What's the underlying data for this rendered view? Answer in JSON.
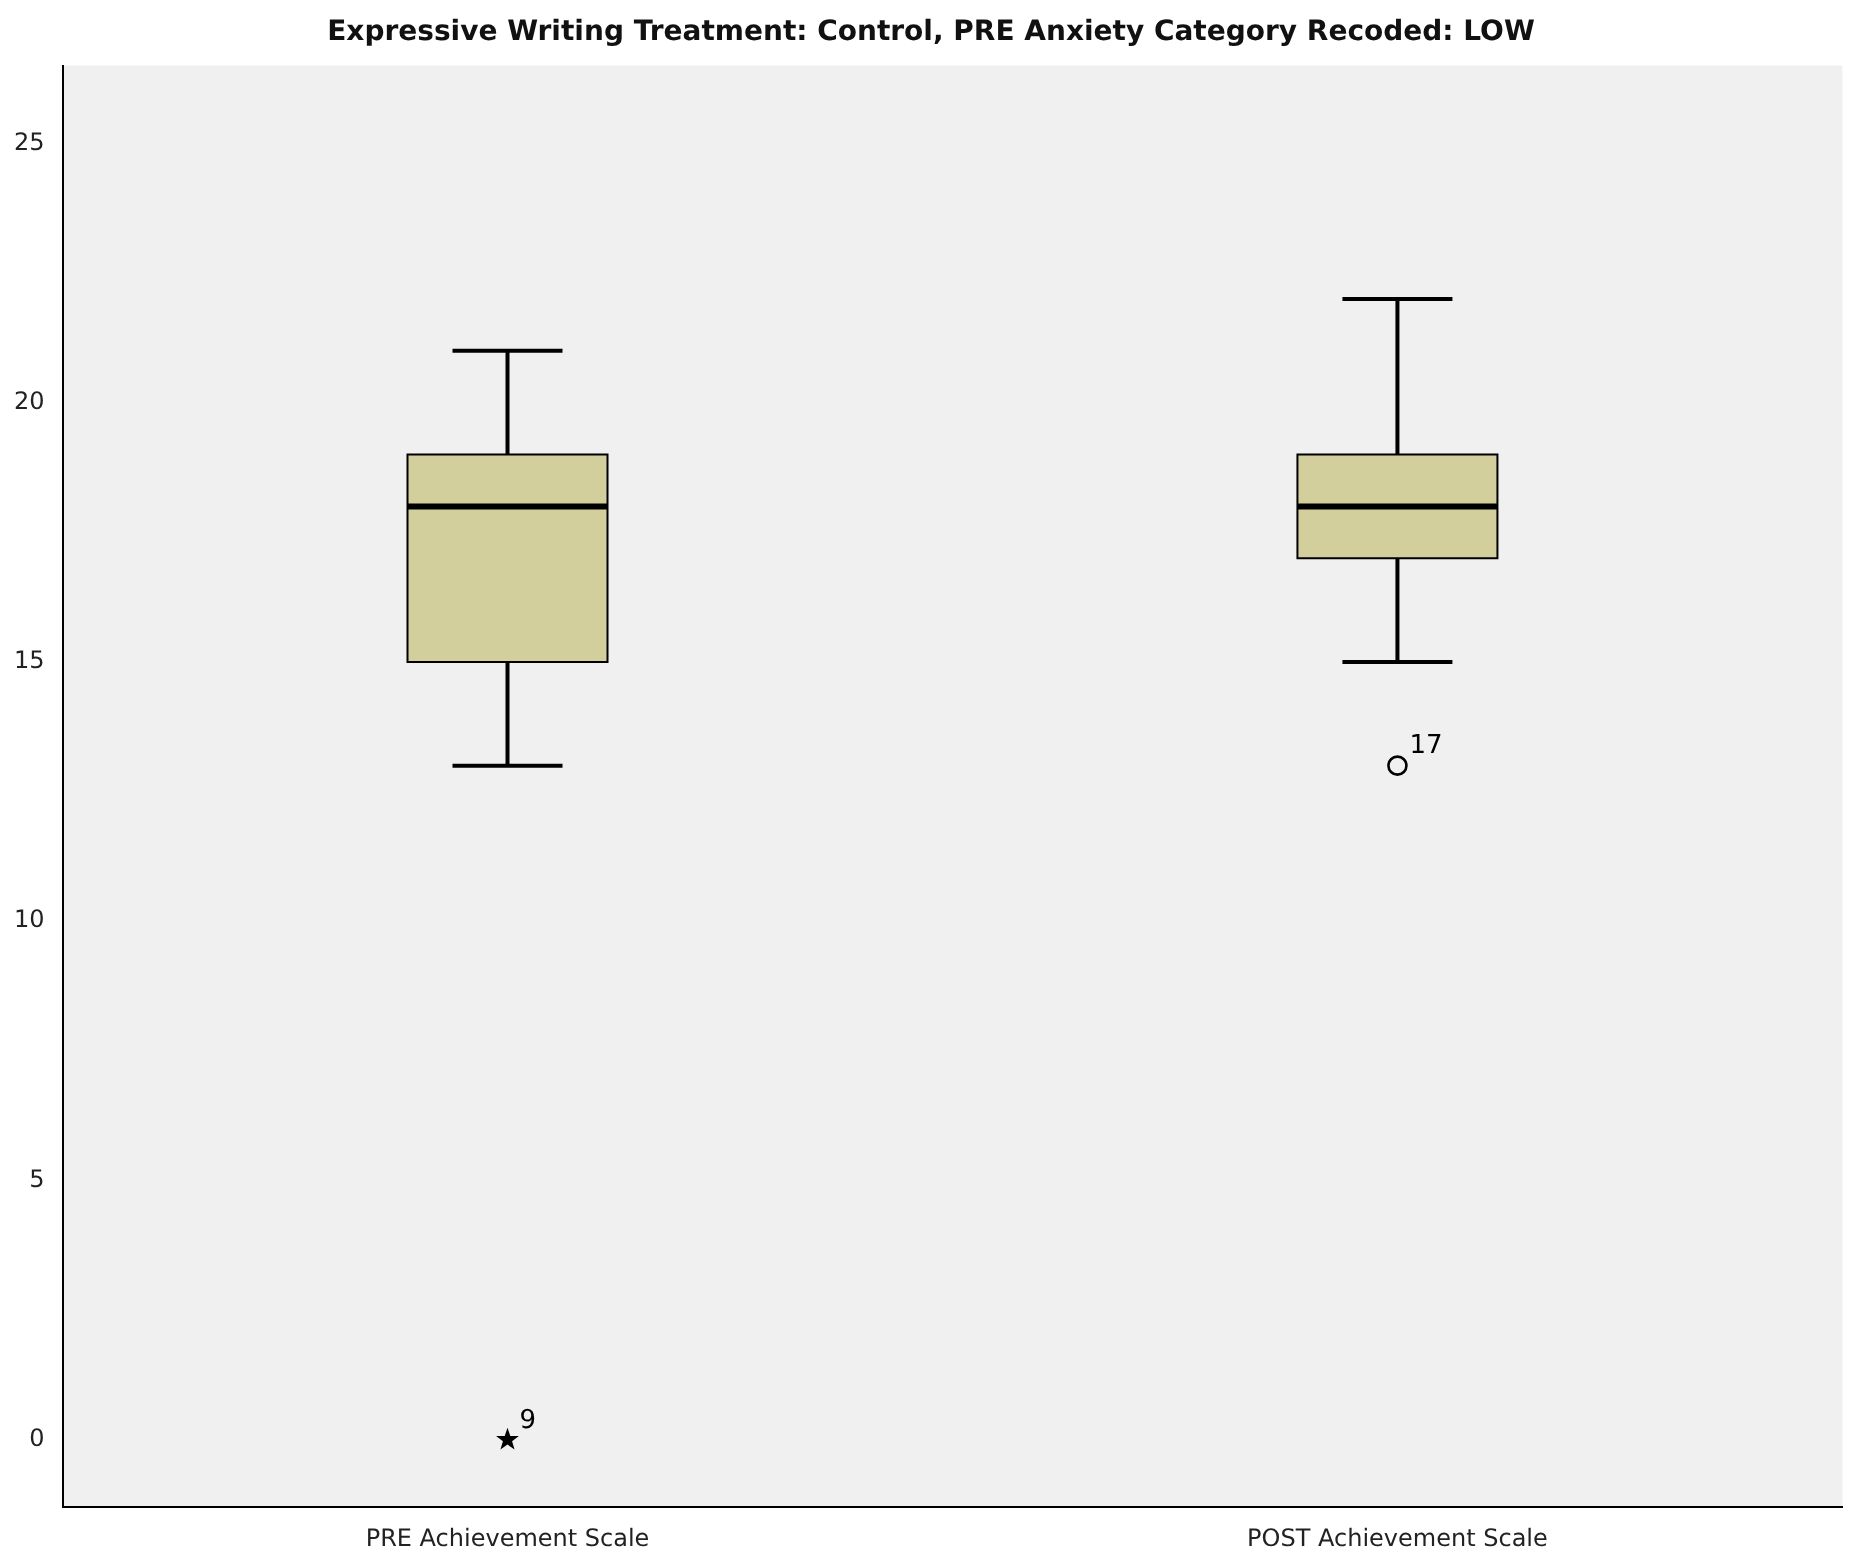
{
  "chart_data": {
    "type": "box",
    "title": "Expressive Writing Treatment: Control, PRE Anxiety Category Recoded: LOW",
    "categories": [
      "PRE Achievement Scale",
      "POST Achievement Scale"
    ],
    "series": [
      {
        "type": "box",
        "color": "#d3cf9d",
        "boxes": [
          {
            "low": 13,
            "q1": 15,
            "median": 18,
            "q3": 19,
            "high": 21
          },
          {
            "low": 15,
            "q1": 17,
            "median": 18,
            "q3": 19,
            "high": 22
          }
        ]
      },
      {
        "type": "scatter",
        "color": "#000000",
        "marker": "star",
        "x": [
          "PRE Achievement Scale"
        ],
        "values": [
          0
        ]
      },
      {
        "type": "scatter",
        "color": "#000000",
        "marker": "circle",
        "x": [
          "POST Achievement Scale"
        ],
        "values": [
          13
        ]
      }
    ],
    "annotations": [
      {
        "text": "9",
        "x": "PRE Achievement Scale",
        "y": 0
      },
      {
        "text": "17",
        "x": "POST Achievement Scale",
        "y": 13
      }
    ],
    "ylim": [
      -1.3,
      26.5
    ],
    "yticks": [
      0,
      5,
      10,
      15,
      20,
      25
    ],
    "grid": false,
    "legend": false
  }
}
